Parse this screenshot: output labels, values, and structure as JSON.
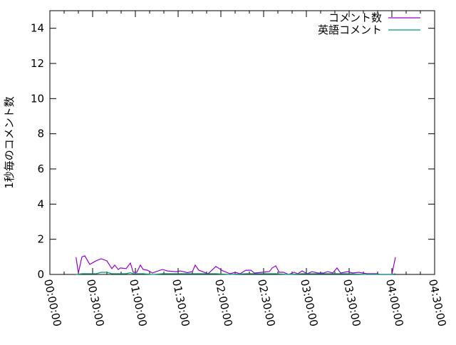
{
  "chart_data": {
    "type": "line",
    "title": "",
    "xlabel": "",
    "ylabel": "1秒毎のコメント数",
    "xlim": [
      "00:00:00",
      "04:30:00"
    ],
    "ylim": [
      0,
      15
    ],
    "x_ticks": [
      "00:00:00",
      "00:30:00",
      "01:00:00",
      "01:30:00",
      "02:00:00",
      "02:30:00",
      "03:00:00",
      "03:30:00",
      "04:00:00",
      "04:30:00"
    ],
    "y_ticks": [
      0,
      2,
      4,
      6,
      8,
      10,
      12,
      14
    ],
    "grid": false,
    "legend_position": "top-right",
    "series": [
      {
        "name": "コメント数",
        "color": "#9400d3",
        "points": [
          [
            "00:18:20",
            0.98
          ],
          [
            "00:20:00",
            0.08
          ],
          [
            "00:22:30",
            1.0
          ],
          [
            "00:24:30",
            1.06
          ],
          [
            "00:28:00",
            0.57
          ],
          [
            "00:32:30",
            0.78
          ],
          [
            "00:36:00",
            0.89
          ],
          [
            "00:40:00",
            0.77
          ],
          [
            "00:43:30",
            0.33
          ],
          [
            "00:45:30",
            0.53
          ],
          [
            "00:48:00",
            0.28
          ],
          [
            "00:49:30",
            0.37
          ],
          [
            "00:53:30",
            0.33
          ],
          [
            "00:56:30",
            0.65
          ],
          [
            "00:58:30",
            0.12
          ],
          [
            "01:01:00",
            0.12
          ],
          [
            "01:03:30",
            0.53
          ],
          [
            "01:05:30",
            0.28
          ],
          [
            "01:08:30",
            0.24
          ],
          [
            "01:12:00",
            0.08
          ],
          [
            "01:14:30",
            0.16
          ],
          [
            "01:19:00",
            0.28
          ],
          [
            "01:22:30",
            0.2
          ],
          [
            "01:28:30",
            0.16
          ],
          [
            "01:31:30",
            0.2
          ],
          [
            "01:36:30",
            0.1
          ],
          [
            "01:40:00",
            0.16
          ],
          [
            "01:42:00",
            0.53
          ],
          [
            "01:44:30",
            0.24
          ],
          [
            "01:51:00",
            0.04
          ],
          [
            "01:56:30",
            0.45
          ],
          [
            "02:01:30",
            0.2
          ],
          [
            "02:06:30",
            0.04
          ],
          [
            "02:10:00",
            0.12
          ],
          [
            "02:13:30",
            0.04
          ],
          [
            "02:17:30",
            0.24
          ],
          [
            "02:21:00",
            0.24
          ],
          [
            "02:23:30",
            0.08
          ],
          [
            "02:29:00",
            0.12
          ],
          [
            "02:34:00",
            0.16
          ],
          [
            "02:36:00",
            0.37
          ],
          [
            "02:38:30",
            0.49
          ],
          [
            "02:41:00",
            0.12
          ],
          [
            "02:44:00",
            0.12
          ],
          [
            "02:47:30",
            0.0
          ],
          [
            "02:51:30",
            0.12
          ],
          [
            "02:54:00",
            0.04
          ],
          [
            "02:57:00",
            0.2
          ],
          [
            "03:00:30",
            0.04
          ],
          [
            "03:04:00",
            0.16
          ],
          [
            "03:08:00",
            0.08
          ],
          [
            "03:12:00",
            0.08
          ],
          [
            "03:15:00",
            0.16
          ],
          [
            "03:18:30",
            0.08
          ],
          [
            "03:21:30",
            0.37
          ],
          [
            "03:24:00",
            0.08
          ],
          [
            "03:29:00",
            0.16
          ],
          [
            "03:32:30",
            0.08
          ],
          [
            "03:36:30",
            0.12
          ],
          [
            "03:42:30",
            0.04
          ],
          [
            "03:50:00",
            0.04
          ],
          [
            "03:51:30",
            0.0
          ],
          [
            "04:00:00",
            0.0
          ],
          [
            "04:02:30",
            0.98
          ]
        ]
      },
      {
        "name": "英語コメント",
        "color": "#009e73",
        "points": [
          [
            "00:18:20",
            0.0
          ],
          [
            "00:22:30",
            0.04
          ],
          [
            "00:28:00",
            0.04
          ],
          [
            "00:32:30",
            0.04
          ],
          [
            "00:36:00",
            0.12
          ],
          [
            "00:40:00",
            0.12
          ],
          [
            "00:43:30",
            0.04
          ],
          [
            "00:49:30",
            0.04
          ],
          [
            "00:53:30",
            0.04
          ],
          [
            "00:56:30",
            0.1
          ],
          [
            "00:58:30",
            0.04
          ],
          [
            "01:05:30",
            0.04
          ],
          [
            "01:12:00",
            0.0
          ],
          [
            "01:19:00",
            0.04
          ],
          [
            "01:28:30",
            0.04
          ],
          [
            "01:36:30",
            0.04
          ],
          [
            "01:44:30",
            0.04
          ],
          [
            "01:56:30",
            0.04
          ],
          [
            "02:06:30",
            0.0
          ],
          [
            "02:17:30",
            0.04
          ],
          [
            "02:29:00",
            0.04
          ],
          [
            "02:38:30",
            0.04
          ],
          [
            "02:47:30",
            0.0
          ],
          [
            "02:57:00",
            0.04
          ],
          [
            "03:08:00",
            0.04
          ],
          [
            "03:18:30",
            0.04
          ],
          [
            "03:29:00",
            0.04
          ],
          [
            "03:42:30",
            0.0
          ],
          [
            "04:00:00",
            0.0
          ],
          [
            "04:02:30",
            0.04
          ]
        ]
      }
    ]
  }
}
